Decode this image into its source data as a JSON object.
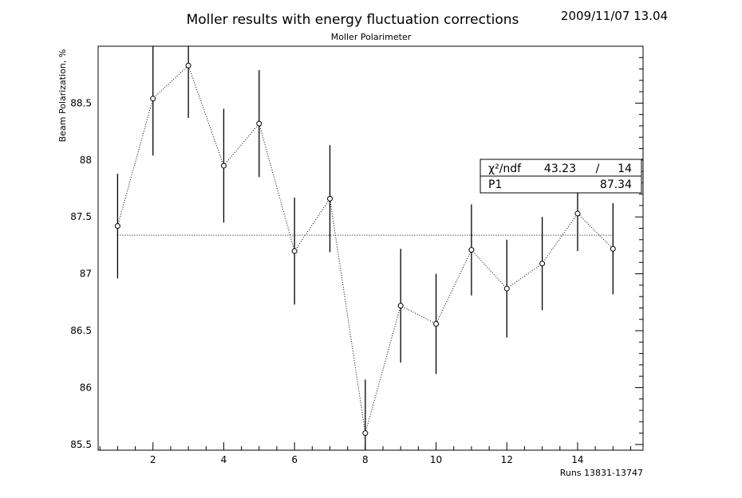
{
  "header": {
    "title": "Moller results with energy fluctuation corrections",
    "timestamp": "2009/11/07   13.04"
  },
  "stats": {
    "chi_label": "χ²/ndf",
    "chi_value": "43.23",
    "chi_sep": "/",
    "ndf": "14",
    "p1_label": "P1",
    "p1_value": "87.34"
  },
  "chart_data": {
    "type": "scatter",
    "title": "Moller Polarimeter",
    "xlabel": "Runs 13831-13747",
    "ylabel": "Beam Polarization, %",
    "xlim": [
      0.45,
      15.85
    ],
    "ylim": [
      85.45,
      89.0
    ],
    "xticks": [
      2,
      4,
      6,
      8,
      10,
      12,
      14
    ],
    "xtick_labels": [
      "2",
      "4",
      "6",
      "8",
      "10",
      "12",
      "14"
    ],
    "yticks": [
      85.5,
      86,
      86.5,
      87,
      87.5,
      88,
      88.5
    ],
    "ytick_labels": [
      "85.5",
      "86",
      "86.5",
      "87",
      "87.5",
      "88",
      "88.5"
    ],
    "series": [
      {
        "x": [
          1,
          2,
          3,
          4,
          5,
          6,
          7,
          8,
          9,
          10,
          11,
          12,
          13,
          14,
          15
        ],
        "y": [
          87.42,
          88.54,
          88.83,
          87.95,
          88.32,
          87.2,
          87.66,
          85.6,
          86.72,
          86.56,
          87.21,
          86.87,
          87.09,
          87.53,
          87.22
        ],
        "yerr": [
          0.46,
          0.5,
          0.46,
          0.5,
          0.47,
          0.47,
          0.47,
          0.47,
          0.5,
          0.44,
          0.4,
          0.43,
          0.41,
          0.33,
          0.4
        ]
      }
    ],
    "fit": {
      "type": "constant",
      "value": 87.34
    },
    "line_style": "dotted",
    "marker": "open-circle",
    "grid": false
  }
}
